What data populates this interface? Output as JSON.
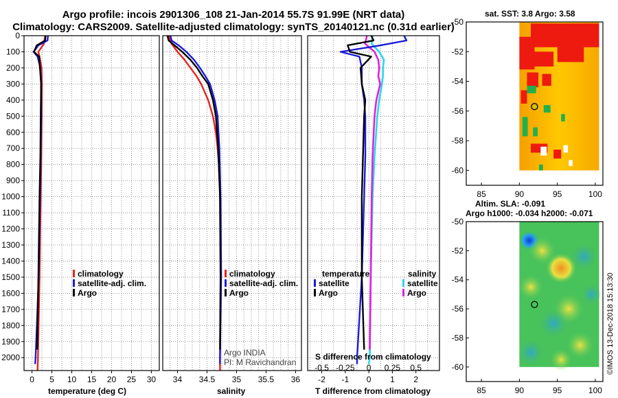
{
  "header": {
    "line1": "Argo profile: incois 2901306_108 21-Jan-2014 55.7S 91.99E (NRT data)",
    "line2": "Climatology: CARS2009. Satellite-adjusted climatology: synTS_20140121.nc (0.31d earlier)"
  },
  "colors": {
    "climatology": "#e8201c",
    "satellite": "#1a1adc",
    "argo": "#000000",
    "satellite_salinity": "#29d8e8",
    "argo_salinity": "#e020e0"
  },
  "chart_data": [
    {
      "type": "line",
      "name": "temperature-profile",
      "xlabel": "temperature (deg C)",
      "ylabel": "",
      "xlim": [
        -2,
        32
      ],
      "ylim": [
        2080,
        0
      ],
      "x_ticks": [
        "0",
        "5",
        "10",
        "15",
        "20",
        "25",
        "30"
      ],
      "y_ticks": [
        "0",
        "100",
        "200",
        "300",
        "400",
        "500",
        "600",
        "700",
        "800",
        "900",
        "1000",
        "1100",
        "1200",
        "1300",
        "1400",
        "1500",
        "1600",
        "1700",
        "1800",
        "1900",
        "2000"
      ],
      "grid": true,
      "legend": [
        "climatology",
        "satellite-adj. clim.",
        "Argo"
      ],
      "series": [
        {
          "name": "climatology",
          "depth": [
            0,
            50,
            100,
            130,
            200,
            300,
            500,
            750,
            1000,
            1500,
            2000,
            2080
          ],
          "values": [
            3.3,
            3.0,
            1.6,
            1.9,
            2.4,
            2.5,
            2.45,
            2.35,
            2.2,
            1.9,
            1.5,
            1.4
          ]
        },
        {
          "name": "satellite-adj. clim.",
          "depth": [
            0,
            30,
            60,
            100,
            130,
            200,
            300,
            500,
            750,
            1000,
            1500,
            2000,
            2040
          ],
          "values": [
            4.0,
            3.9,
            1.6,
            0.4,
            1.4,
            2.1,
            2.3,
            2.3,
            2.2,
            2.0,
            1.7,
            0.9,
            0.8
          ]
        },
        {
          "name": "Argo",
          "depth": [
            0,
            30,
            60,
            100,
            130,
            200,
            300,
            500,
            750,
            1000,
            1500,
            1950
          ],
          "values": [
            3.4,
            3.3,
            1.2,
            0.5,
            1.8,
            2.0,
            2.3,
            2.2,
            2.1,
            1.9,
            1.6,
            1.3
          ]
        }
      ]
    },
    {
      "type": "line",
      "name": "salinity-profile",
      "xlabel": "salinity",
      "ylabel": "",
      "xlim": [
        33.75,
        36.1
      ],
      "ylim": [
        2080,
        0
      ],
      "x_ticks": [
        "34",
        "34.5",
        "35",
        "35.5",
        "36"
      ],
      "grid": true,
      "legend": [
        "climatology",
        "satellite-adj. clim.",
        "Argo"
      ],
      "annotations": [
        "Argo INDIA",
        "PI: M Ravichandran"
      ],
      "series": [
        {
          "name": "climatology",
          "depth": [
            0,
            50,
            100,
            150,
            200,
            250,
            300,
            400,
            500,
            600,
            700,
            800,
            1000,
            1500,
            2000,
            2080
          ],
          "values": [
            33.85,
            33.9,
            34.0,
            34.12,
            34.22,
            34.32,
            34.4,
            34.52,
            34.6,
            34.65,
            34.68,
            34.7,
            34.72,
            34.73,
            34.72,
            34.72
          ]
        },
        {
          "name": "satellite-adj. clim.",
          "depth": [
            0,
            30,
            60,
            100,
            150,
            200,
            250,
            300,
            400,
            500,
            700,
            1000,
            1500,
            2000,
            2040
          ],
          "values": [
            33.88,
            33.9,
            34.02,
            34.15,
            34.28,
            34.38,
            34.47,
            34.55,
            34.63,
            34.68,
            34.71,
            34.73,
            34.74,
            34.72,
            34.72
          ]
        },
        {
          "name": "Argo",
          "depth": [
            0,
            30,
            60,
            100,
            150,
            200,
            250,
            300,
            400,
            500,
            700,
            1000,
            1500,
            1950
          ],
          "values": [
            33.83,
            33.85,
            33.95,
            34.08,
            34.22,
            34.33,
            34.42,
            34.52,
            34.6,
            34.65,
            34.69,
            34.72,
            34.73,
            34.72
          ]
        }
      ]
    },
    {
      "type": "line",
      "name": "difference-profile",
      "xlabel": "T difference from climatology",
      "x2label": "S difference from climatology",
      "xlim": [
        -2.6,
        3.0
      ],
      "x2lim": [
        -0.65,
        0.75
      ],
      "ylim": [
        2080,
        0
      ],
      "x_ticks": [
        "-2",
        "-1",
        "0",
        "1",
        "2"
      ],
      "x2_ticks": [
        "-0.5",
        "-0.25",
        "0",
        "0.25",
        "0.5"
      ],
      "grid": true,
      "legend_temperature": [
        "temperature",
        "satellite",
        "Argo"
      ],
      "legend_salinity": [
        "salinity",
        "satellite",
        "Argo"
      ],
      "series": [
        {
          "name": "temperature satellite",
          "depth": [
            0,
            30,
            60,
            100,
            130,
            200,
            300,
            400,
            500,
            750,
            1000,
            1500,
            2000,
            2040
          ],
          "values": [
            1.5,
            1.6,
            0.5,
            -1.2,
            -0.4,
            -0.3,
            -0.3,
            -0.2,
            -0.15,
            -0.15,
            -0.2,
            -0.3,
            -0.5,
            -0.5
          ]
        },
        {
          "name": "temperature Argo",
          "depth": [
            0,
            30,
            60,
            100,
            130,
            200,
            300,
            400,
            500,
            750,
            1000,
            1500,
            1950
          ],
          "values": [
            0.1,
            0.2,
            -0.9,
            -0.8,
            0.1,
            -0.35,
            -0.3,
            -0.15,
            -0.2,
            -0.25,
            -0.3,
            -0.3,
            -0.2
          ]
        },
        {
          "name": "salinity satellite",
          "depth": [
            0,
            50,
            100,
            150,
            200,
            250,
            300,
            400,
            500,
            750,
            1000,
            1500,
            2000,
            2040
          ],
          "values": [
            0.04,
            0.03,
            0.11,
            0.16,
            0.15,
            0.15,
            0.14,
            0.11,
            0.09,
            0.06,
            0.04,
            0.02,
            0.01,
            0.0
          ]
        },
        {
          "name": "salinity Argo",
          "depth": [
            0,
            50,
            100,
            150,
            200,
            250,
            300,
            400,
            500,
            750,
            1000,
            1500,
            1950
          ],
          "values": [
            -0.02,
            -0.04,
            0.06,
            0.1,
            0.11,
            0.1,
            0.12,
            0.08,
            0.06,
            0.04,
            0.03,
            0.02,
            0.01
          ]
        }
      ]
    },
    {
      "type": "heatmap",
      "name": "sst-map",
      "title": "sat. SST: 3.8 Argo: 3.58",
      "xlim": [
        83,
        101
      ],
      "ylim": [
        -61,
        -50
      ],
      "x_ticks": [
        "85",
        "90",
        "95",
        "100"
      ],
      "y_ticks": [
        "-50",
        "-52",
        "-54",
        "-56",
        "-58",
        "-60"
      ],
      "marker": {
        "lon": 91.99,
        "lat": -55.7
      }
    },
    {
      "type": "heatmap",
      "name": "sla-map",
      "title": "Altim. SLA: -0.091",
      "subtitle": "Argo h1000: -0.034 h2000: -0.071",
      "xlim": [
        83,
        101
      ],
      "ylim": [
        -61,
        -50
      ],
      "x_ticks": [
        "85",
        "90",
        "95",
        "100"
      ],
      "y_ticks": [
        "-50",
        "-52",
        "-54",
        "-56",
        "-58",
        "-60"
      ],
      "marker": {
        "lon": 91.99,
        "lat": -55.7
      }
    }
  ],
  "legend": {
    "climatology": "climatology",
    "satellite_adj": "satellite-adj. clim.",
    "argo": "Argo",
    "temperature": "temperature",
    "salinity": "salinity",
    "satellite": "satellite"
  },
  "footer": {
    "timestamp": "©IMOS 13-Dec-2018 15:13:30"
  }
}
